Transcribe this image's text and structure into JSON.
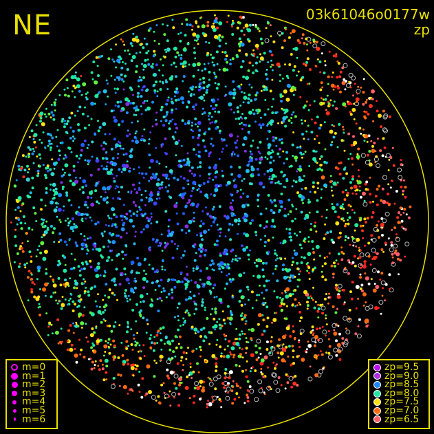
{
  "corner_label": "NE",
  "title": {
    "line1": "03k61046o0177w",
    "line2": "zp"
  },
  "colors": {
    "frame": "#e8e000",
    "background": "#000000",
    "unmatched": "#ffffff",
    "magnitude_legend": "#ff00ff"
  },
  "magnitude_legend": [
    {
      "label": "m=0",
      "style": "open"
    },
    {
      "label": "m=1",
      "style": "filled"
    },
    {
      "label": "m=2",
      "style": "filled"
    },
    {
      "label": "m=3",
      "style": "filled"
    },
    {
      "label": "m=4",
      "style": "filled"
    },
    {
      "label": "m=5",
      "style": "filled"
    },
    {
      "label": "m=6",
      "style": "filled"
    }
  ],
  "zp_legend": [
    {
      "label": "zp=9.5",
      "color": "#c010f0"
    },
    {
      "label": "zp=9.0",
      "color": "#b030e0"
    },
    {
      "label": "zp=8.5",
      "color": "#2088ff"
    },
    {
      "label": "zp=8.0",
      "color": "#20e8a0"
    },
    {
      "label": "zp=7.5",
      "color": "#ffe010"
    },
    {
      "label": "zp=7.0",
      "color": "#ff6a10"
    },
    {
      "label": "zp=6.5",
      "color": "#ff6068"
    }
  ],
  "chart_data": {
    "type": "scatter",
    "description_of_marks": "all-sky star field; colour encodes photometric zero point, size encodes magnitude",
    "color_scale": {
      "variable": "zp",
      "stops": [
        6.5,
        7.0,
        7.5,
        8.0,
        8.5,
        9.0,
        9.5
      ]
    },
    "size_scale": {
      "variable": "m",
      "stops": [
        0,
        1,
        2,
        3,
        4,
        5,
        6
      ]
    },
    "grid": false
  }
}
